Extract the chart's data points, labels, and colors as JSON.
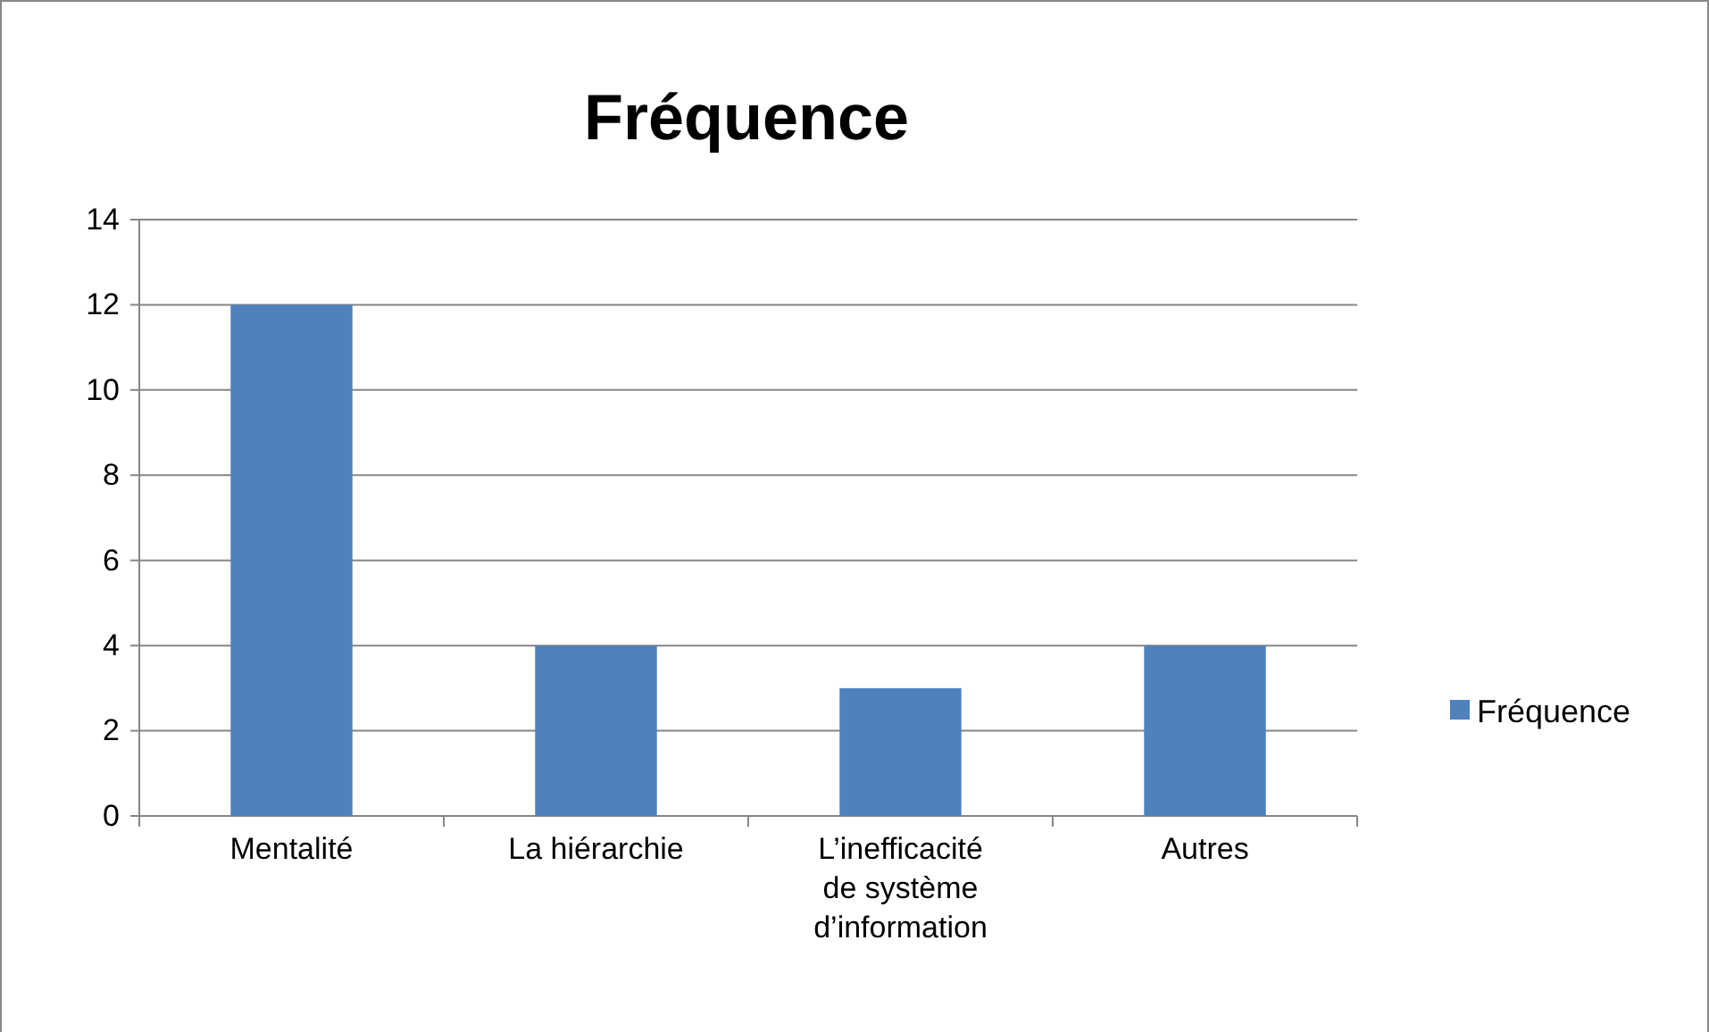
{
  "chart_data": {
    "type": "bar",
    "title": "Fréquence",
    "categories": [
      "Mentalité",
      "La hiérarchie",
      "L’inefficacité de système d’information",
      "Autres"
    ],
    "series": [
      {
        "name": "Fréquence",
        "color": "#4f81bd",
        "values": [
          12,
          4,
          3,
          4
        ]
      }
    ],
    "ylim": [
      0,
      14
    ],
    "yticks": [
      0,
      2,
      4,
      6,
      8,
      10,
      12,
      14
    ],
    "grid": "y",
    "legend": "right"
  }
}
